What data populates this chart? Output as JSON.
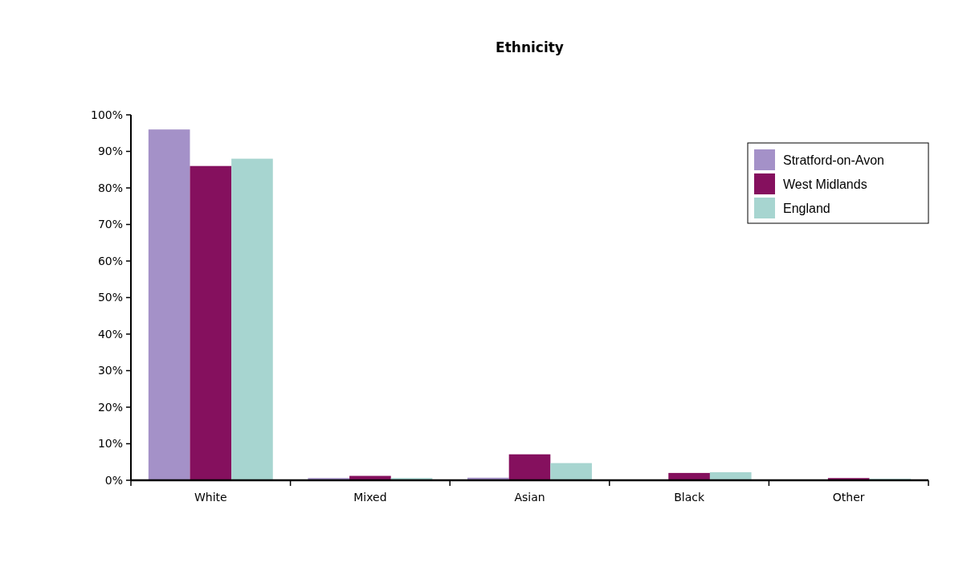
{
  "chart_data": {
    "type": "bar",
    "title": "Ethnicity",
    "categories": [
      "White",
      "Mixed",
      "Asian",
      "Black",
      "Other"
    ],
    "series": [
      {
        "name": "Stratford-on-Avon",
        "color": "#a491c8",
        "values": [
          96,
          0.6,
          0.7,
          0.2,
          null
        ]
      },
      {
        "name": "West Midlands",
        "color": "#85105e",
        "values": [
          86,
          1.2,
          7.1,
          2.0,
          0.6
        ]
      },
      {
        "name": "England",
        "color": "#a7d5d0",
        "values": [
          88,
          0.6,
          4.7,
          2.2,
          0.4
        ]
      }
    ],
    "ylim": [
      0,
      100
    ],
    "yticks": [
      {
        "value": 0,
        "label": "0%"
      },
      {
        "value": 10,
        "label": "10%"
      },
      {
        "value": 20,
        "label": "20%"
      },
      {
        "value": 30,
        "label": "30%"
      },
      {
        "value": 40,
        "label": "40%"
      },
      {
        "value": 50,
        "label": "50%"
      },
      {
        "value": 60,
        "label": "60%"
      },
      {
        "value": 70,
        "label": "70%"
      },
      {
        "value": 80,
        "label": "80%"
      },
      {
        "value": 90,
        "label": "90%"
      },
      {
        "value": 100,
        "label": "100%"
      }
    ],
    "legend": "right"
  }
}
